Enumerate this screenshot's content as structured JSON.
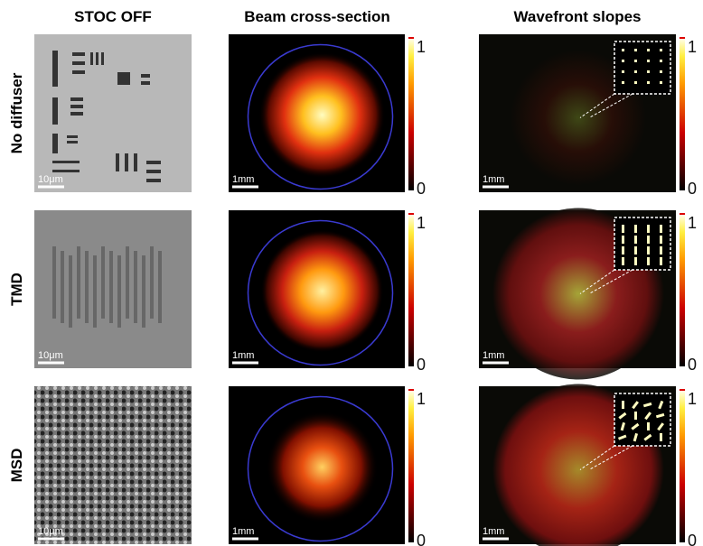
{
  "columns": [
    "STOC OFF",
    "Beam cross-section",
    "Wavefront slopes"
  ],
  "rows": [
    {
      "label": "No diffuser",
      "panels": [
        {
          "scale_bar": "10μm"
        },
        {
          "scale_bar": "1mm",
          "colorbar_max": "1",
          "colorbar_min": "0"
        },
        {
          "scale_bar": "1mm",
          "colorbar_max": "1",
          "colorbar_min": "0"
        }
      ]
    },
    {
      "label": "TMD",
      "panels": [
        {
          "scale_bar": "10μm"
        },
        {
          "scale_bar": "1mm",
          "colorbar_max": "1",
          "colorbar_min": "0"
        },
        {
          "scale_bar": "1mm",
          "colorbar_max": "1",
          "colorbar_min": "0"
        }
      ]
    },
    {
      "label": "MSD",
      "panels": [
        {
          "scale_bar": "10μm"
        },
        {
          "scale_bar": "1mm",
          "colorbar_max": "1",
          "colorbar_min": "0"
        },
        {
          "scale_bar": "1mm",
          "colorbar_max": "1",
          "colorbar_min": "0"
        }
      ]
    }
  ]
}
